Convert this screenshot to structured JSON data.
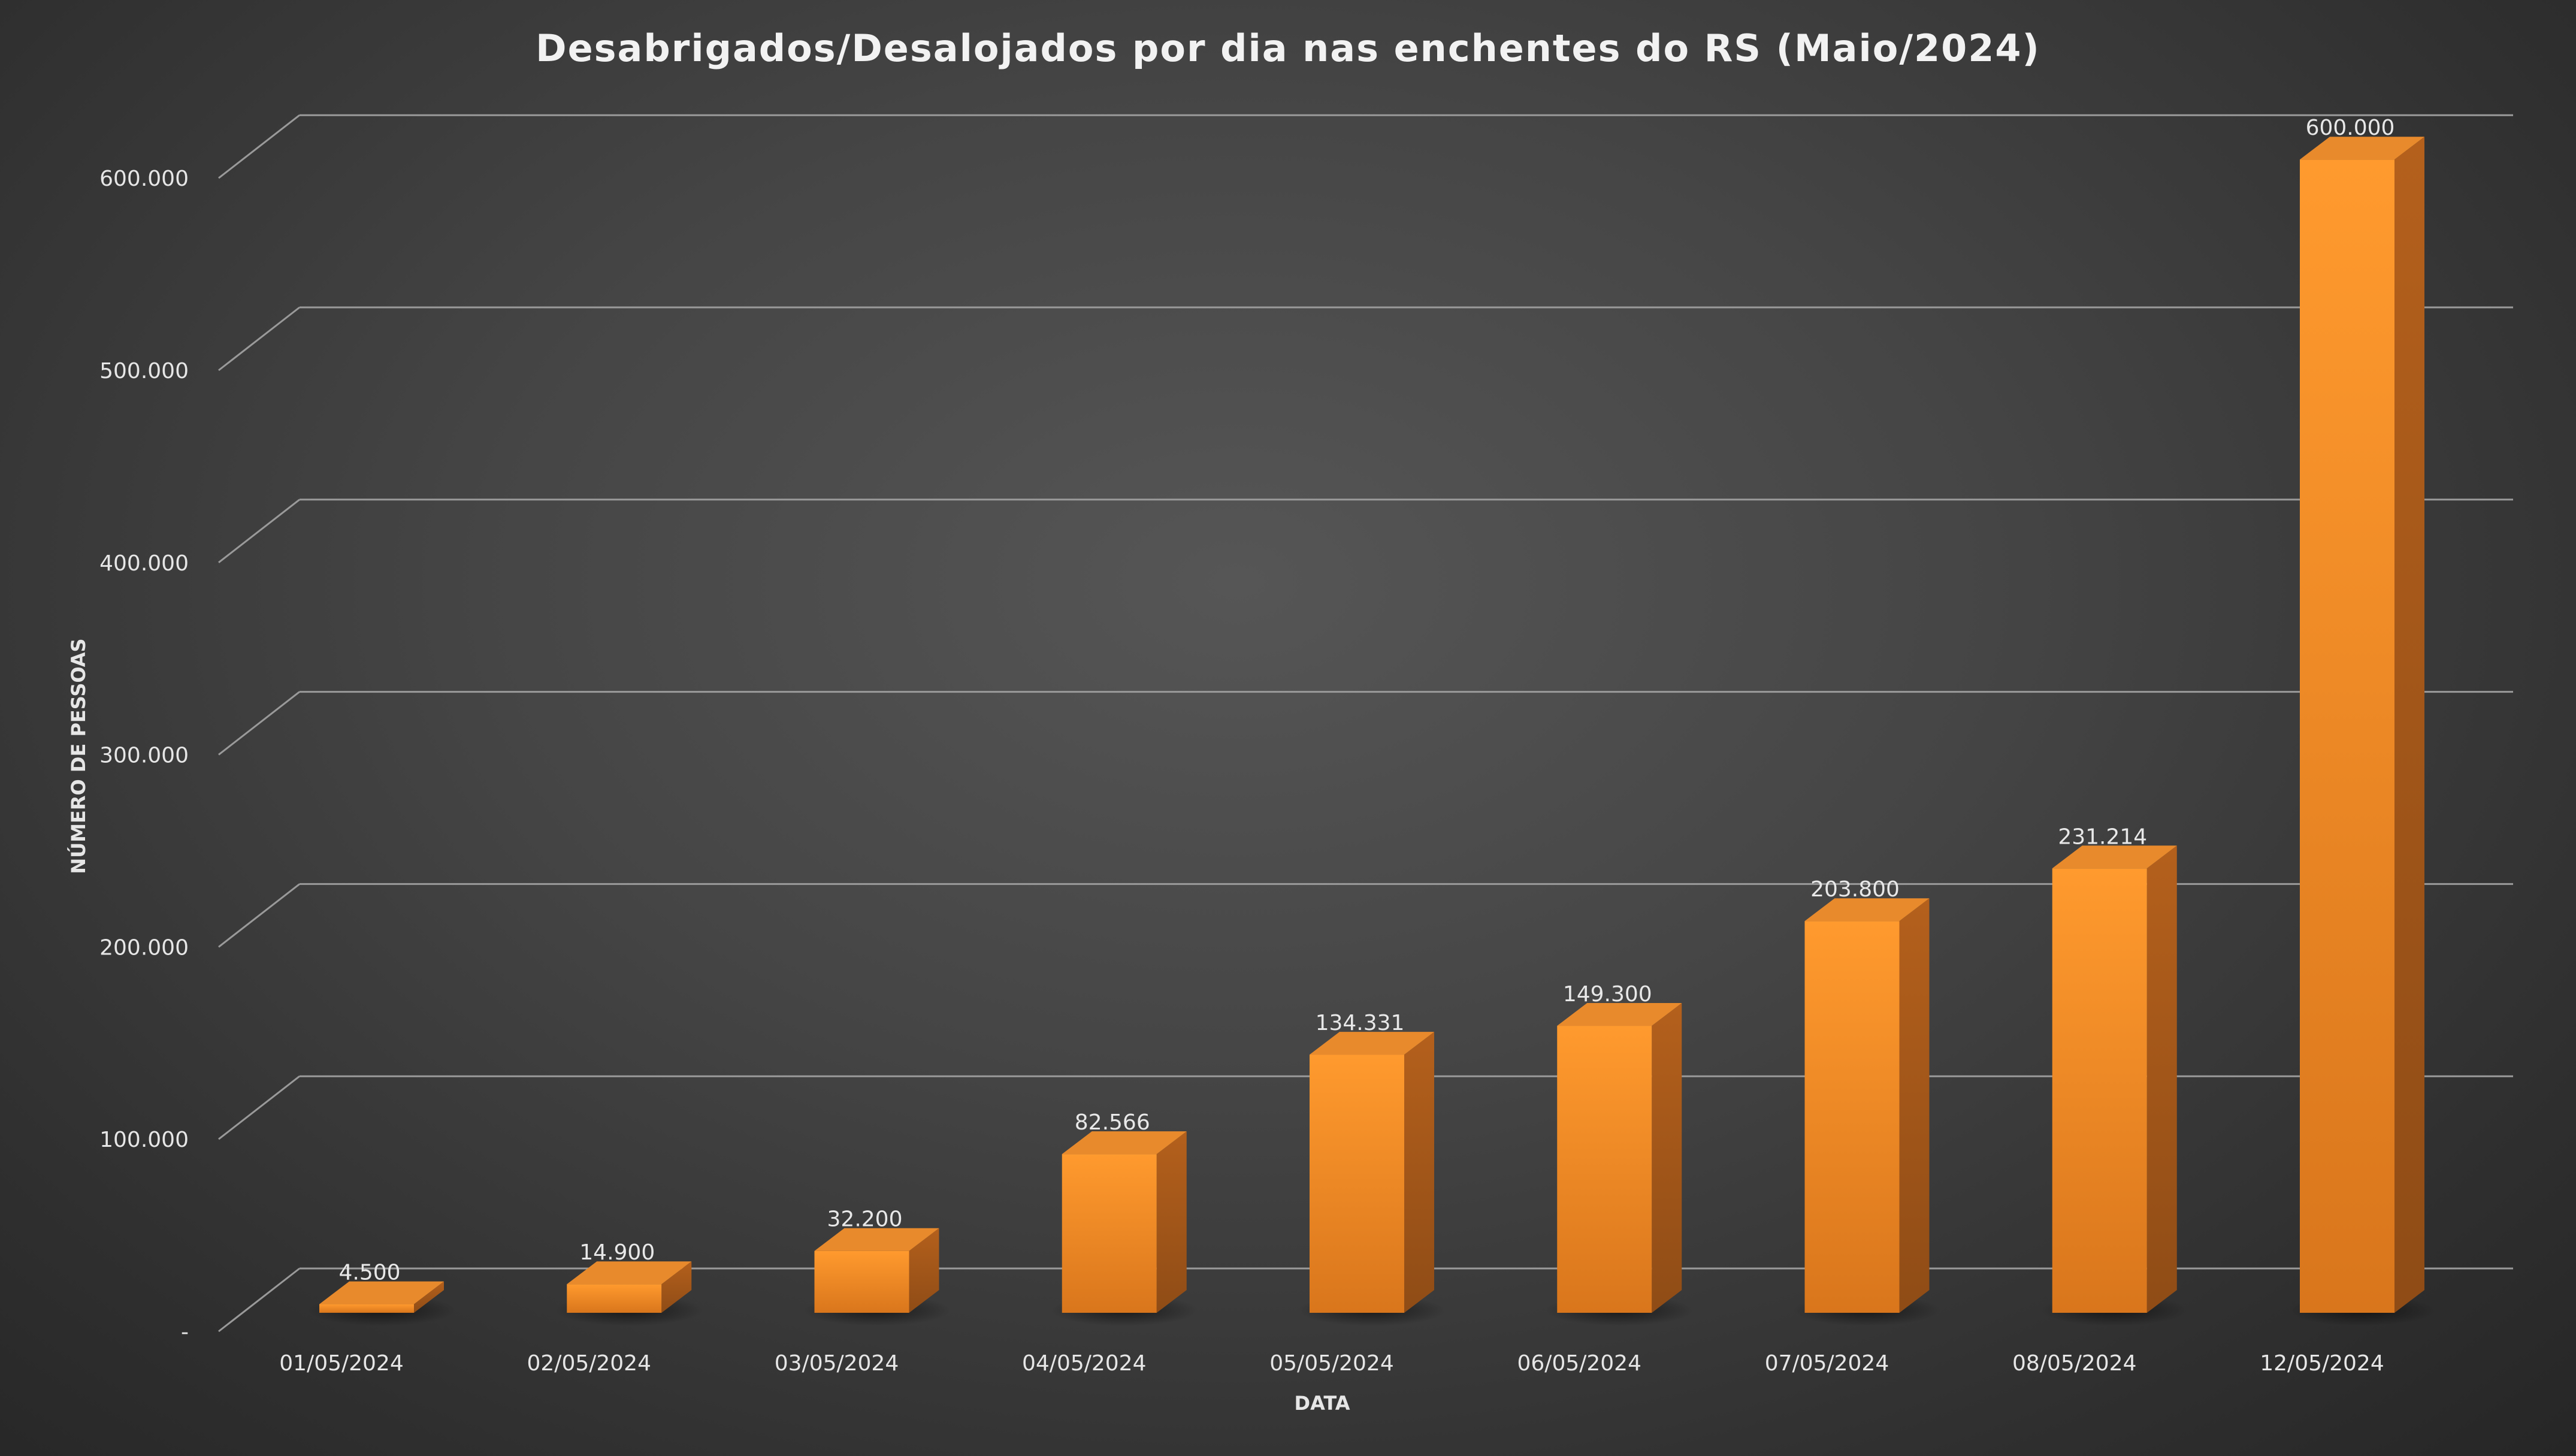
{
  "chart_data": {
    "type": "bar",
    "title": "Desabrigados/Desalojados por dia nas enchentes do RS (Maio/2024)",
    "xlabel": "DATA",
    "ylabel": "NÚMERO DE PESSOAS",
    "categories": [
      "01/05/2024",
      "02/05/2024",
      "03/05/2024",
      "04/05/2024",
      "05/05/2024",
      "06/05/2024",
      "07/05/2024",
      "08/05/2024",
      "12/05/2024"
    ],
    "values": [
      4500,
      14900,
      32200,
      82566,
      134331,
      149300,
      203800,
      231214,
      600000
    ],
    "data_labels": [
      "4.500",
      "14.900",
      "32.200",
      "82.566",
      "134.331",
      "149.300",
      "203.800",
      "231.214",
      "600.000"
    ],
    "y_ticks": [
      0,
      100000,
      200000,
      300000,
      400000,
      500000,
      600000
    ],
    "y_tick_labels": [
      "-",
      "100.000",
      "200.000",
      "300.000",
      "400.000",
      "500.000",
      "600.000"
    ],
    "ylim": [
      0,
      600000
    ],
    "grid": true,
    "legend": "none",
    "style": "3d-column",
    "colors": {
      "bar_front_top": "#ff9a2e",
      "bar_front_bottom": "#d9761c",
      "bar_side": "#a8591a",
      "bar_top": "#e88a2c",
      "grid": "#9a9a9a",
      "text": "#e6e6e6"
    }
  }
}
